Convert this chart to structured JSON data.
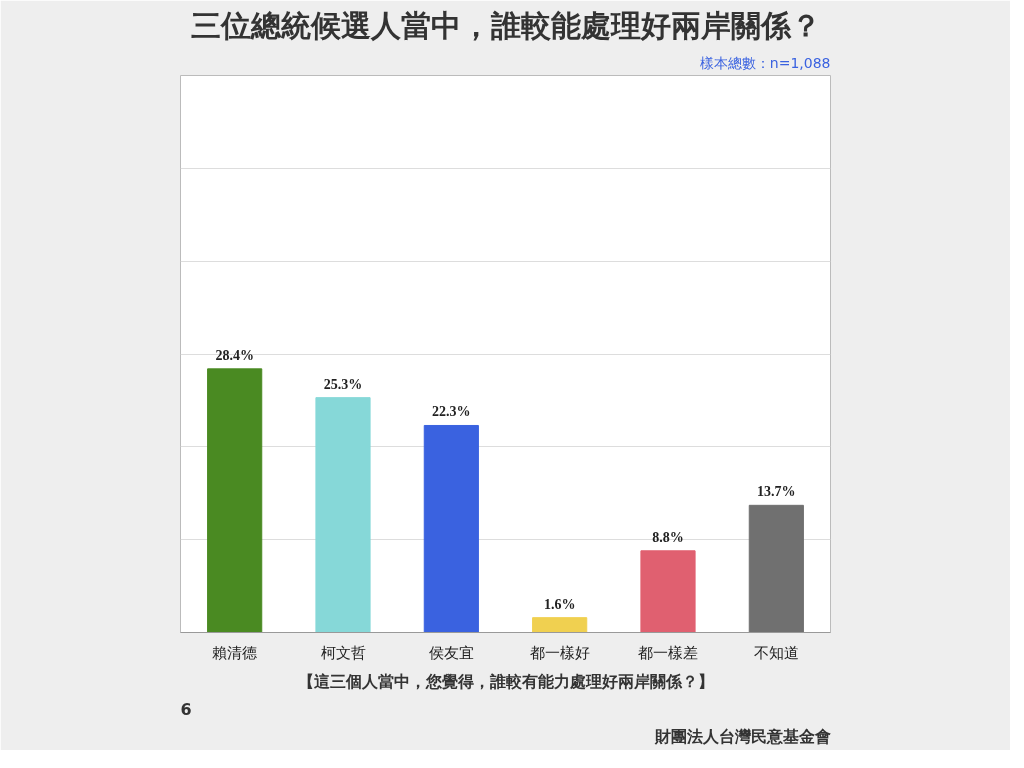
{
  "chart_data": {
    "type": "bar",
    "title": "三位總統候選人當中，誰較能處理好兩岸關係？",
    "categories": [
      "賴清德",
      "柯文哲",
      "侯友宜",
      "都一樣好",
      "都一樣差",
      "不知道"
    ],
    "values": [
      28.4,
      25.3,
      22.3,
      1.6,
      8.8,
      13.7
    ],
    "colors": [
      "#4a8a22",
      "#86d8d8",
      "#3a62e0",
      "#f0d050",
      "#e06070",
      "#707070"
    ],
    "value_labels": [
      "28.4%",
      "25.3%",
      "22.3%",
      "1.6%",
      "8.8%",
      "13.7%"
    ],
    "ylim": [
      0,
      60
    ],
    "yticks": [
      0,
      10,
      20,
      30,
      40,
      50,
      60
    ],
    "grid": "y",
    "tick_labels": "x",
    "annotations": [
      "樣本總數：n=1,088",
      "【這三個人當中，您覺得，誰較有能力處理好兩岸關係？】",
      "6",
      "財團法人台灣民意基金會"
    ]
  }
}
